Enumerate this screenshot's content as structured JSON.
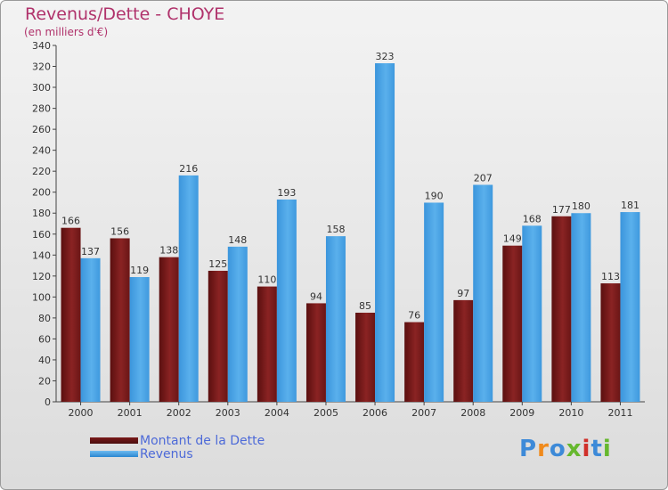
{
  "chart_data": {
    "type": "bar",
    "title": "Revenus/Dette - CHOYE",
    "subtitle": "(en milliers d'€)",
    "categories": [
      "2000",
      "2001",
      "2002",
      "2003",
      "2004",
      "2005",
      "2006",
      "2007",
      "2008",
      "2009",
      "2010",
      "2011"
    ],
    "series": [
      {
        "name": "Montant de la Dette",
        "color": "#7a1a1a",
        "values": [
          166,
          156,
          138,
          125,
          110,
          94,
          85,
          76,
          97,
          149,
          177,
          113
        ]
      },
      {
        "name": "Revenus",
        "color": "#4fa6e6",
        "values": [
          137,
          119,
          216,
          148,
          193,
          158,
          323,
          190,
          207,
          168,
          180,
          181
        ]
      }
    ],
    "ylim": [
      0,
      340
    ],
    "ytick_step": 20,
    "grid": false,
    "legend_position": "bottom-left",
    "xlabel": "",
    "ylabel": ""
  },
  "logo": {
    "text": "Proxiti"
  }
}
